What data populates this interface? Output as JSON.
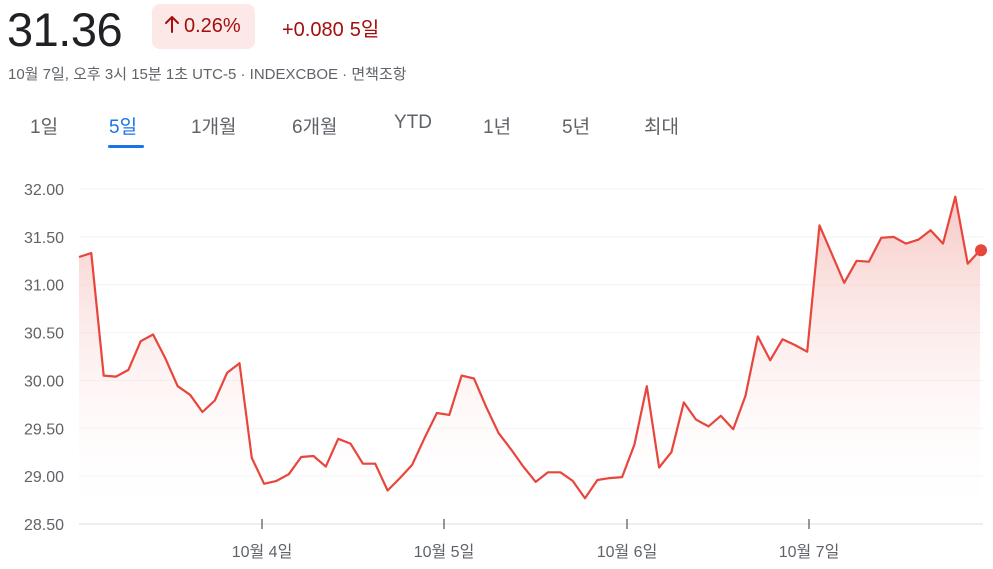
{
  "header": {
    "price": "31.36",
    "change_percent": "0.26%",
    "change_value": "+0.080",
    "change_period": "5일",
    "arrow_icon": "arrow-up-icon",
    "subinfo": "10월 7일, 오후 3시 15분 1초 UTC-5 · INDEXCBOE · 면책조항"
  },
  "tabs": [
    {
      "label": "1일",
      "active": false
    },
    {
      "label": "5일",
      "active": true
    },
    {
      "label": "1개월",
      "active": false
    },
    {
      "label": "6개월",
      "active": false
    },
    {
      "label": "YTD",
      "active": false
    },
    {
      "label": "1년",
      "active": false
    },
    {
      "label": "5년",
      "active": false
    },
    {
      "label": "최대",
      "active": false
    }
  ],
  "colors": {
    "line": "#e8453c",
    "fill_top": "#f6c3bf",
    "negative_text": "#a50e0e",
    "badge_bg": "#fce8e6",
    "active_tab": "#1a73e8"
  },
  "chart_data": {
    "type": "area",
    "ylim": [
      28.5,
      32.0
    ],
    "yticks": [
      "32.00",
      "31.50",
      "31.00",
      "30.50",
      "30.00",
      "29.50",
      "29.00",
      "28.50"
    ],
    "xticks": [
      "10월 4일",
      "10월 5일",
      "10월 6일",
      "10월 7일"
    ],
    "grid": true,
    "series": [
      {
        "values": [
          31.29,
          31.33,
          30.05,
          30.04,
          30.11,
          30.41,
          30.48,
          30.23,
          29.94,
          29.85,
          29.67,
          29.79,
          30.08,
          30.18,
          29.19,
          28.92,
          28.95,
          29.02,
          29.2,
          29.21,
          29.1,
          29.39,
          29.34,
          29.13,
          29.13,
          28.85,
          28.98,
          29.12,
          29.4,
          29.66,
          29.64,
          30.05,
          30.02,
          29.72,
          29.45,
          29.28,
          29.1,
          28.94,
          29.04,
          29.04,
          28.95,
          28.77,
          28.96,
          28.98,
          28.99,
          29.33,
          29.94,
          29.09,
          29.25,
          29.77,
          29.59,
          29.52,
          29.63,
          29.49,
          29.84,
          30.46,
          30.21,
          30.43,
          30.37,
          30.3,
          31.62,
          31.32,
          31.02,
          31.25,
          31.24,
          31.49,
          31.5,
          31.43,
          31.47,
          31.57,
          31.43,
          31.92,
          31.22,
          31.36
        ]
      }
    ],
    "last_value": 31.36
  }
}
